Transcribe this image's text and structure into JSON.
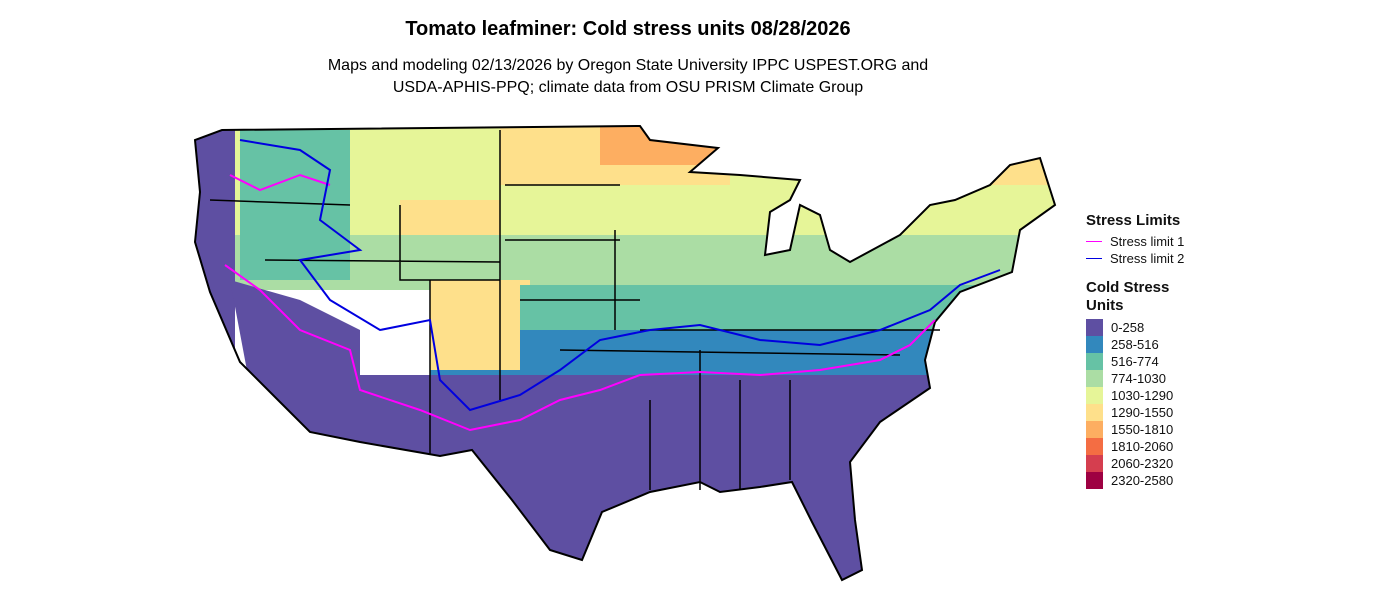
{
  "header": {
    "title": "Tomato leafminer: Cold stress units 08/28/2026",
    "subtitle_lines": [
      "Maps and modeling 02/13/2026 by Oregon State University IPPC USPEST.ORG and",
      "USDA-APHIS-PPQ; climate data from OSU PRISM Climate Group"
    ]
  },
  "legend": {
    "stress_limits": {
      "title": "Stress Limits",
      "items": [
        {
          "name": "Stress limit 1",
          "color": "#ff00ff"
        },
        {
          "name": "Stress limit 2",
          "color": "#0000e0"
        }
      ]
    },
    "cold_stress_units": {
      "title": "Cold Stress Units",
      "items": [
        {
          "name": "0-258",
          "color": "#5e4fa2"
        },
        {
          "name": "258-516",
          "color": "#3288bd"
        },
        {
          "name": "516-774",
          "color": "#66c2a5"
        },
        {
          "name": "774-1030",
          "color": "#abdda4"
        },
        {
          "name": "1030-1290",
          "color": "#e6f598"
        },
        {
          "name": "1290-1550",
          "color": "#fee08b"
        },
        {
          "name": "1550-1810",
          "color": "#fdae61"
        },
        {
          "name": "1810-2060",
          "color": "#f46d43"
        },
        {
          "name": "2060-2320",
          "color": "#d53e4f"
        },
        {
          "name": "2320-2580",
          "color": "#9e0142"
        }
      ]
    }
  }
}
